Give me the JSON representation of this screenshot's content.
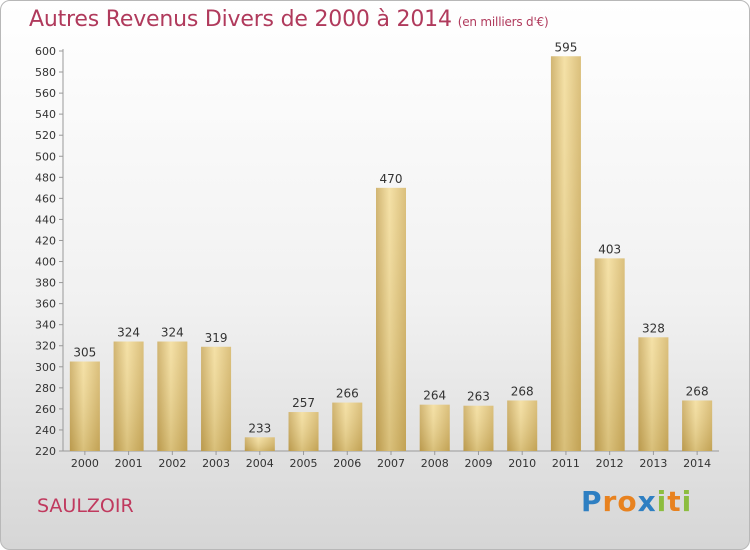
{
  "chart_data": {
    "type": "bar",
    "title": "Autres Revenus Divers de 2000 à 2014",
    "subtitle": "(en milliers d'€)",
    "categories": [
      "2000",
      "2001",
      "2002",
      "2003",
      "2004",
      "2005",
      "2006",
      "2007",
      "2008",
      "2009",
      "2010",
      "2011",
      "2012",
      "2013",
      "2014"
    ],
    "values": [
      305,
      324,
      324,
      319,
      233,
      257,
      266,
      470,
      264,
      263,
      268,
      595,
      403,
      328,
      268
    ],
    "ylim": [
      220,
      600
    ],
    "yticks": [
      220,
      240,
      260,
      280,
      300,
      320,
      340,
      360,
      380,
      400,
      420,
      440,
      460,
      480,
      500,
      520,
      540,
      560,
      580,
      600
    ],
    "grid": false,
    "bar_color": "#e2c579"
  },
  "footer": {
    "commune": "SAULZOIR",
    "logo_letters": [
      {
        "ch": "P",
        "color": "#2e7fc2"
      },
      {
        "ch": "r",
        "color": "#e8821f"
      },
      {
        "ch": "o",
        "color": "#e8821f"
      },
      {
        "ch": "x",
        "color": "#2e7fc2"
      },
      {
        "ch": "i",
        "color": "#8cbd3f"
      },
      {
        "ch": "t",
        "color": "#e8821f"
      },
      {
        "ch": "i",
        "color": "#8cbd3f"
      }
    ]
  }
}
